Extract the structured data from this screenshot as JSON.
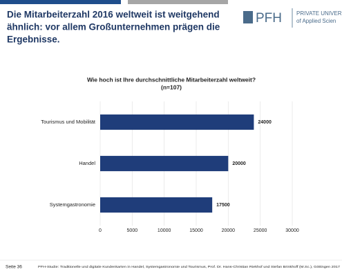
{
  "slide": {
    "title": [
      "Die Mitarbeiterzahl 2016 weltweit ist weitgehend",
      "ähnlich: vor allem Großunternehmen prägen die",
      "Ergebnisse."
    ],
    "logo": {
      "mark": "PFH",
      "line1": "PRIVATE UNIVERS",
      "line2": "of Applied Scien"
    },
    "footer": {
      "page": "Seite 36",
      "source": "PFH-Studie: Traditionelle und digitale Kundenkarten in Handel, Systemgastronomie und Tourismus, Prof. Dr. Hans-Christian Riekhof und Stefan Brinkhoff (M.Sc.), Göttingen 2017"
    }
  },
  "chart_data": {
    "type": "bar",
    "orientation": "horizontal",
    "title": "Wie hoch ist Ihre durchschnittliche Mitarbeiterzahl weltweit?",
    "subtitle": "(n=107)",
    "categories": [
      "Tourismus und Mobilität",
      "Handel",
      "Systemgastronomie"
    ],
    "values": [
      24000,
      20000,
      17500
    ],
    "color": "#1f3d7a",
    "xlim": [
      0,
      30000
    ],
    "xticks": [
      0,
      5000,
      10000,
      15000,
      20000,
      25000,
      30000
    ],
    "grid": true
  }
}
